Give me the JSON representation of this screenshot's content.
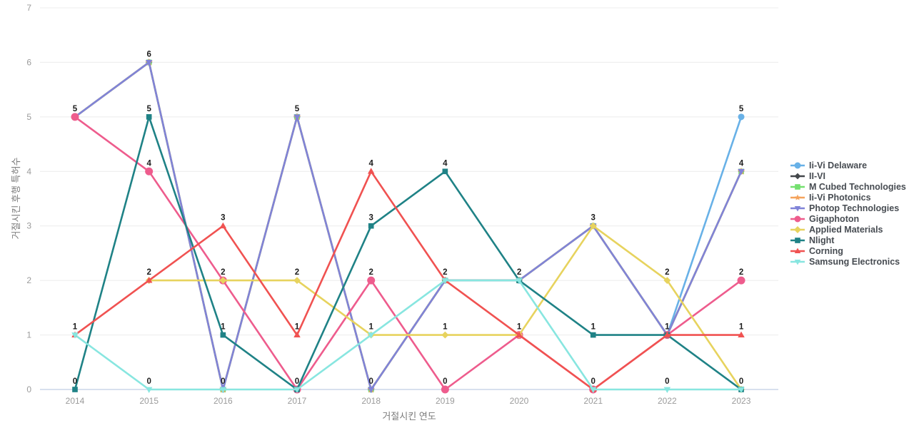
{
  "chart_data": {
    "type": "line",
    "title": "",
    "xlabel": "거절시킨 연도",
    "ylabel": "거절시킨 후행 특허수",
    "x": [
      2014,
      2015,
      2016,
      2017,
      2018,
      2019,
      2020,
      2021,
      2022,
      2023
    ],
    "ylim": [
      0,
      7
    ],
    "yticks": [
      0,
      1,
      2,
      3,
      4,
      5,
      6,
      7
    ],
    "grid": "horizontal",
    "legend_position": "right",
    "style": {
      "background": "#ffffff",
      "grid_color": "#ececec",
      "zeroline_color": "#ccd5e8",
      "tick_color": "#9b9b9b",
      "axis_title_color": "#7b7b7b",
      "legend_text_color": "#474c52",
      "point_label_color": "#1c1c1c"
    },
    "series": [
      {
        "name": "Ii-Vi Delaware",
        "color": "#68b1e7",
        "marker": "circle",
        "size": 9,
        "values": [
          5,
          6,
          0,
          5,
          0,
          2,
          2,
          3,
          1,
          5
        ]
      },
      {
        "name": "II-VI",
        "color": "#43474b",
        "marker": "diamond",
        "size": 8,
        "values": [
          5,
          6,
          0,
          5,
          0,
          2,
          2,
          3,
          1,
          4
        ]
      },
      {
        "name": "M Cubed Technologies",
        "color": "#74e06f",
        "marker": "square",
        "size": 9,
        "values": [
          5,
          6,
          0,
          5,
          0,
          2,
          2,
          3,
          1,
          4
        ]
      },
      {
        "name": "Ii-Vi Photonics",
        "color": "#f5a35c",
        "marker": "star",
        "size": 11,
        "values": [
          5,
          6,
          0,
          5,
          0,
          2,
          2,
          3,
          1,
          4
        ]
      },
      {
        "name": "Photop Technologies",
        "color": "#8083d8",
        "marker": "triangle-down",
        "size": 10,
        "values": [
          5,
          6,
          0,
          5,
          0,
          2,
          2,
          3,
          1,
          4
        ]
      },
      {
        "name": "Gigaphoton",
        "color": "#ee5c8d",
        "marker": "circle",
        "size": 11,
        "values": [
          5,
          4,
          2,
          0,
          2,
          0,
          1,
          0,
          1,
          2
        ]
      },
      {
        "name": "Applied Materials",
        "color": "#e7d35e",
        "marker": "diamond",
        "size": 9,
        "values": [
          null,
          2,
          2,
          2,
          1,
          1,
          1,
          3,
          2,
          0
        ]
      },
      {
        "name": "Nlight",
        "color": "#1f8286",
        "marker": "square",
        "size": 9,
        "values": [
          0,
          5,
          1,
          0,
          3,
          4,
          2,
          1,
          1,
          0
        ]
      },
      {
        "name": "Corning",
        "color": "#f05251",
        "marker": "triangle-up",
        "size": 10,
        "values": [
          1,
          2,
          3,
          1,
          4,
          2,
          1,
          0,
          1,
          1
        ]
      },
      {
        "name": "Samsung Electronics",
        "color": "#88e6e0",
        "marker": "triangle-down",
        "size": 10,
        "values": [
          1,
          0,
          0,
          0,
          1,
          2,
          2,
          0,
          0,
          0
        ]
      }
    ]
  }
}
